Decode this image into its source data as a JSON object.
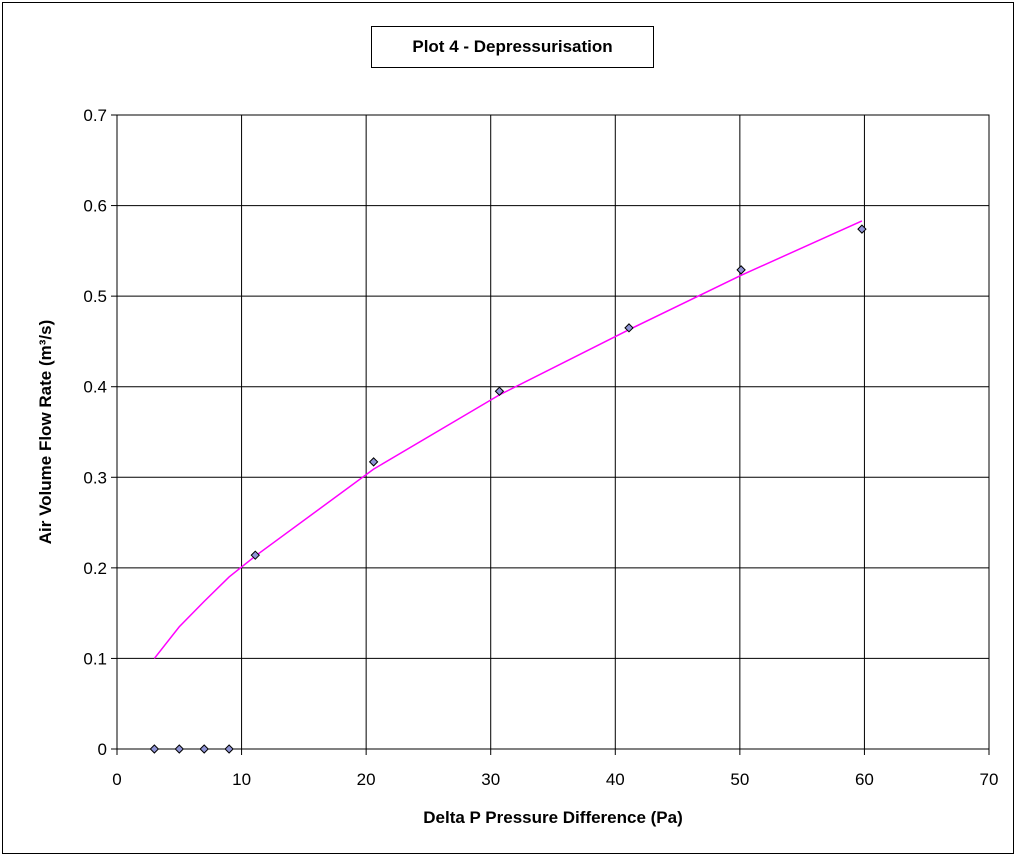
{
  "chart_data": {
    "type": "scatter",
    "title": "Plot 4 - Depressurisation",
    "xlabel": "Delta P Pressure Difference (Pa)",
    "ylabel": "Air Volume Flow Rate (m³/s)",
    "xlim": [
      0,
      70
    ],
    "ylim": [
      0,
      0.7
    ],
    "x_ticks": [
      "0",
      "10",
      "20",
      "30",
      "40",
      "50",
      "60",
      "70"
    ],
    "y_ticks": [
      "0",
      "0.1",
      "0.2",
      "0.3",
      "0.4",
      "0.5",
      "0.6",
      "0.7"
    ],
    "grid": true,
    "legend": "none",
    "series": [
      {
        "kind": "markers",
        "marker": "diamond",
        "color": "#8f94d6",
        "points": [
          [
            3,
            0
          ],
          [
            5,
            0
          ],
          [
            7,
            0
          ],
          [
            9,
            0
          ],
          [
            11.1,
            0.214
          ],
          [
            20.6,
            0.317
          ],
          [
            30.7,
            0.395
          ],
          [
            41.1,
            0.465
          ],
          [
            50.1,
            0.529
          ],
          [
            59.8,
            0.574
          ]
        ]
      },
      {
        "kind": "line",
        "color": "#ff00ff",
        "points": [
          [
            3,
            0.1
          ],
          [
            5,
            0.135
          ],
          [
            7,
            0.163
          ],
          [
            9,
            0.19
          ],
          [
            11.1,
            0.213
          ],
          [
            20.6,
            0.309
          ],
          [
            30.7,
            0.391
          ],
          [
            41.1,
            0.463
          ],
          [
            50.1,
            0.523
          ],
          [
            59.8,
            0.583
          ]
        ]
      }
    ]
  }
}
